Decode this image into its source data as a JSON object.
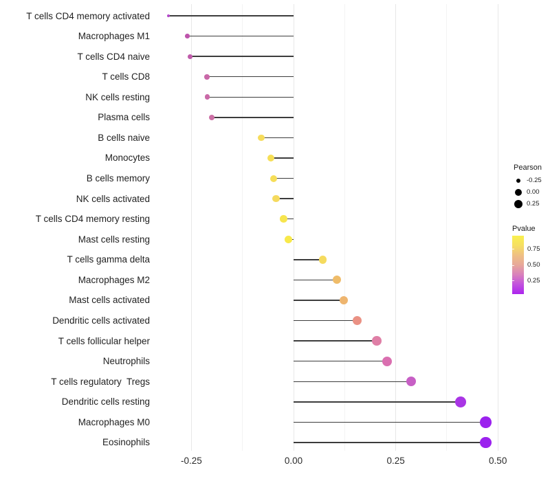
{
  "chart_data": {
    "type": "lollipop",
    "orientation": "horizontal",
    "title": "",
    "xlabel": "",
    "ylabel": "",
    "xlim": [
      -0.315,
      0.513
    ],
    "x_ticks": [
      -0.25,
      0.0,
      0.25,
      0.5
    ],
    "x_tick_labels": [
      "-0.25",
      "0.00",
      "0.25",
      "0.50"
    ],
    "x_minor_ticks": [
      -0.125,
      0.125,
      0.375
    ],
    "grid": true,
    "rows": [
      {
        "label": "T cells CD4 memory activated",
        "pearson": -0.306,
        "pvalue_est": 0.12,
        "color": "#B347C9",
        "radius": 2.2
      },
      {
        "label": "Macrophages M1",
        "pearson": -0.26,
        "pvalue_est": 0.28,
        "color": "#BE55AC",
        "radius": 3.3
      },
      {
        "label": "T cells CD4 naive",
        "pearson": -0.253,
        "pvalue_est": 0.29,
        "color": "#C05CAB",
        "radius": 3.4
      },
      {
        "label": "T cells CD8",
        "pearson": -0.212,
        "pvalue_est": 0.32,
        "color": "#C968A8",
        "radius": 3.8
      },
      {
        "label": "NK cells resting",
        "pearson": -0.211,
        "pvalue_est": 0.32,
        "color": "#CA69A7",
        "radius": 3.8
      },
      {
        "label": "Plasma cells",
        "pearson": -0.2,
        "pvalue_est": 0.33,
        "color": "#CC6FA5",
        "radius": 4.1
      },
      {
        "label": "B cells naive",
        "pearson": -0.079,
        "pvalue_est": 0.82,
        "color": "#F6DC5C",
        "radius": 4.8
      },
      {
        "label": "Monocytes",
        "pearson": -0.055,
        "pvalue_est": 0.84,
        "color": "#F6DF56",
        "radius": 5.0
      },
      {
        "label": "B cells memory",
        "pearson": -0.049,
        "pvalue_est": 0.83,
        "color": "#F6DE58",
        "radius": 5.0
      },
      {
        "label": "NK cells activated",
        "pearson": -0.043,
        "pvalue_est": 0.81,
        "color": "#F5DA5E",
        "radius": 5.1
      },
      {
        "label": "T cells CD4 memory resting",
        "pearson": -0.024,
        "pvalue_est": 0.88,
        "color": "#F7E54E",
        "radius": 5.3
      },
      {
        "label": "Mast cells resting",
        "pearson": -0.013,
        "pvalue_est": 0.91,
        "color": "#F8E94A",
        "radius": 5.4
      },
      {
        "label": "T cells gamma delta",
        "pearson": 0.071,
        "pvalue_est": 0.81,
        "color": "#F5DB5E",
        "radius": 5.7
      },
      {
        "label": "Macrophages M2",
        "pearson": 0.106,
        "pvalue_est": 0.65,
        "color": "#EFBC69",
        "radius": 6.1
      },
      {
        "label": "Mast cells activated",
        "pearson": 0.123,
        "pvalue_est": 0.62,
        "color": "#EEB56F",
        "radius": 6.3
      },
      {
        "label": "Dendritic cells activated",
        "pearson": 0.155,
        "pvalue_est": 0.5,
        "color": "#EA9184",
        "radius": 6.5
      },
      {
        "label": "T cells follicular helper",
        "pearson": 0.204,
        "pvalue_est": 0.41,
        "color": "#DF7FA6",
        "radius": 6.8
      },
      {
        "label": "Neutrophils",
        "pearson": 0.228,
        "pvalue_est": 0.37,
        "color": "#DA6FB0",
        "radius": 7.0
      },
      {
        "label": "T cells regulatory  Tregs",
        "pearson": 0.288,
        "pvalue_est": 0.27,
        "color": "#C75FC5",
        "radius": 7.2
      },
      {
        "label": "Dendritic cells resting",
        "pearson": 0.409,
        "pvalue_est": 0.1,
        "color": "#A935E5",
        "radius": 7.9
      },
      {
        "label": "Macrophages M0",
        "pearson": 0.47,
        "pvalue_est": 0.03,
        "color": "#9B22EE",
        "radius": 8.3
      },
      {
        "label": "Eosinophils",
        "pearson": 0.47,
        "pvalue_est": 0.03,
        "color": "#9B22EE",
        "radius": 8.3
      }
    ],
    "legend": {
      "size": {
        "title": "Pearson",
        "entries": [
          {
            "label": "-0.25",
            "radius": 3.3
          },
          {
            "label": "0.00",
            "radius": 5.3
          },
          {
            "label": "0.25",
            "radius": 6.4
          }
        ]
      },
      "color": {
        "title": "Pvalue",
        "ticks": [
          {
            "label": "0.75",
            "frac_from_bottom": 0.765
          },
          {
            "label": "0.50",
            "frac_from_bottom": 0.494
          },
          {
            "label": "0.25",
            "frac_from_bottom": 0.224
          }
        ],
        "gradient_stops_bottom_to_top": [
          "#AC24EE",
          "#C252DE",
          "#D981BC",
          "#E7A89A",
          "#EFC083",
          "#F6DF63",
          "#F9F04E"
        ]
      }
    }
  }
}
